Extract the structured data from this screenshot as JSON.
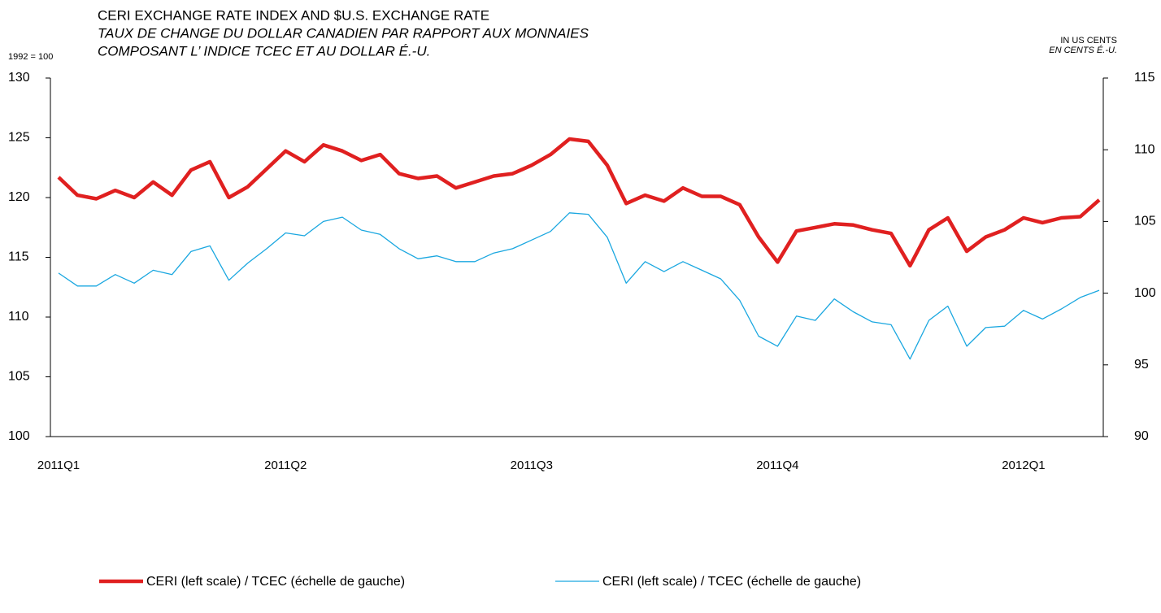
{
  "chart_data": {
    "type": "line",
    "title": "CERI EXCHANGE RATE INDEX AND $U.S. EXCHANGE RATE",
    "subtitle": [
      "TAUX DE CHANGE DU DOLLAR CANADIEN PAR RAPPORT AUX MONNAIES",
      "COMPOSANT L’ INDICE TCEC ET AU DOLLAR É.-U."
    ],
    "y_label": "1992 = 100",
    "y2_label": [
      "IN US CENTS",
      "EN CENTS É.-U."
    ],
    "categories": [
      "2011Q1",
      null,
      null,
      null,
      null,
      null,
      null,
      null,
      null,
      null,
      null,
      null,
      "2011Q2",
      null,
      null,
      null,
      null,
      null,
      null,
      null,
      null,
      null,
      null,
      null,
      null,
      "2011Q3",
      null,
      null,
      null,
      null,
      null,
      null,
      null,
      null,
      null,
      null,
      null,
      null,
      "2011Q4",
      null,
      null,
      null,
      null,
      null,
      null,
      null,
      null,
      null,
      null,
      null,
      null,
      "2012Q1",
      null,
      null,
      null,
      null
    ],
    "series": [
      {
        "name": "CERI (left scale) / TCEC (échelle de gauche)",
        "color": "#e02020",
        "values": [
          121.7,
          120.2,
          119.9,
          120.6,
          120.0,
          121.3,
          120.2,
          122.3,
          123.0,
          120.0,
          120.9,
          122.4,
          123.9,
          123.0,
          124.4,
          123.9,
          123.1,
          123.6,
          122.0,
          121.6,
          121.8,
          120.8,
          121.3,
          121.8,
          122.0,
          122.7,
          123.6,
          124.9,
          124.7,
          122.7,
          119.5,
          120.2,
          119.7,
          120.8,
          120.1,
          120.1,
          119.4,
          116.7,
          114.6,
          117.2,
          117.5,
          117.8,
          117.7,
          117.3,
          117.0,
          114.3,
          117.3,
          118.3,
          115.5,
          116.7,
          117.3,
          118.3,
          117.9,
          118.3,
          118.4,
          119.8
        ]
      },
      {
        "name": "CERI (left scale) / TCEC (échelle de gauche)",
        "color": "#1aa7e0",
        "axis": "y2",
        "values": [
          101.4,
          100.5,
          100.5,
          101.3,
          100.7,
          101.6,
          101.3,
          102.9,
          103.3,
          100.9,
          102.1,
          103.1,
          104.2,
          104.0,
          105.0,
          105.3,
          104.4,
          104.1,
          103.1,
          102.4,
          102.6,
          102.2,
          102.2,
          102.8,
          103.1,
          103.7,
          104.3,
          105.6,
          105.5,
          103.9,
          100.7,
          102.2,
          101.5,
          102.2,
          101.6,
          101.0,
          99.5,
          97.0,
          96.3,
          98.4,
          98.1,
          99.6,
          98.7,
          98.0,
          97.8,
          95.4,
          98.1,
          99.1,
          96.3,
          97.6,
          97.7,
          98.8,
          98.2,
          98.9,
          99.7,
          100.2
        ]
      }
    ],
    "ylim": [
      100,
      130
    ],
    "yticks": [
      100,
      105,
      110,
      115,
      120,
      125,
      130
    ],
    "y2lim": [
      90,
      115
    ],
    "y2ticks": [
      90,
      95,
      100,
      105,
      110,
      115
    ],
    "grid": false
  }
}
